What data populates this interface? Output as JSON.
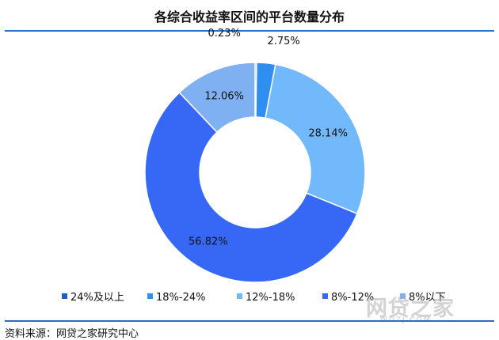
{
  "title": "各综合收益率区间的平台数量分布",
  "source": "资料来源：网贷之家研究中心",
  "watermark": {
    "text": "网贷之家",
    "subtext": "WDZJ.COM"
  },
  "chart_data": {
    "type": "pie",
    "donut": true,
    "title": "各综合收益率区间的平台数量分布",
    "categories": [
      "24%及以上",
      "18%-24%",
      "12%-18%",
      "8%-12%",
      "8%以下"
    ],
    "values": [
      0.23,
      2.75,
      28.14,
      56.82,
      12.06
    ],
    "labels": [
      "0.23%",
      "2.75%",
      "28.14%",
      "56.82%",
      "12.06%"
    ],
    "colors": [
      "#1f5fc8",
      "#2f8ff0",
      "#72b9fb",
      "#3668f5",
      "#7fb0f2"
    ],
    "legend_position": "bottom"
  }
}
